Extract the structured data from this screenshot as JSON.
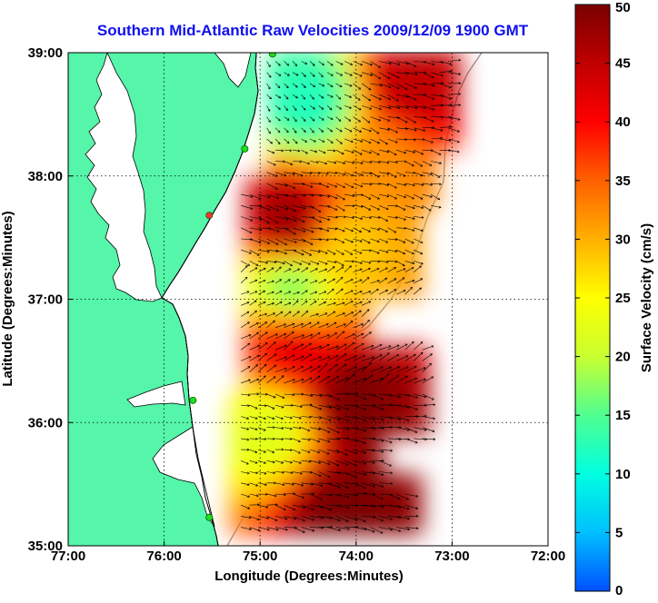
{
  "title": "Southern Mid-Atlantic Raw Velocities 2009/12/09 1900 GMT",
  "x_axis": {
    "label": "Longitude (Degrees:Minutes)",
    "ticks": [
      "77:00",
      "76:00",
      "75:00",
      "74:00",
      "73:00",
      "72:00"
    ]
  },
  "y_axis": {
    "label": "Latitude (Degrees:Minutes)",
    "ticks": [
      "39:00",
      "38:00",
      "37:00",
      "36:00",
      "35:00"
    ]
  },
  "colorbar": {
    "label": "Surface Velocity (cm/s)",
    "ticks": [
      "0",
      "5",
      "10",
      "15",
      "20",
      "25",
      "30",
      "35",
      "40",
      "45",
      "50"
    ],
    "min": 0,
    "max": 50,
    "colors": [
      "#0050ff",
      "#00c0ff",
      "#00ffe0",
      "#50ff90",
      "#c8ff30",
      "#ffff00",
      "#ffb000",
      "#ff6000",
      "#ff0000",
      "#c00000",
      "#7a0000"
    ]
  },
  "map": {
    "lon_range": [
      -77,
      -72
    ],
    "lat_range": [
      35,
      39
    ],
    "land_color": "#55f5aa",
    "water_color": "#ffffff",
    "grid": "dotted",
    "stations": [
      {
        "lon": -74.87,
        "lat": 38.99,
        "color": "#22dd22"
      },
      {
        "lon": -75.16,
        "lat": 38.22,
        "color": "#22dd22"
      },
      {
        "lon": -75.53,
        "lat": 37.68,
        "color": "#ff3030"
      },
      {
        "lon": -75.7,
        "lat": 36.18,
        "color": "#22dd22"
      },
      {
        "lon": -75.53,
        "lat": 35.23,
        "color": "#22dd22"
      }
    ]
  },
  "chart_data": {
    "type": "heatmap",
    "title": "Southern Mid-Atlantic Raw Velocities 2009/12/09 1900 GMT",
    "xlabel": "Longitude (Degrees:Minutes)",
    "ylabel": "Latitude (Degrees:Minutes)",
    "xlim": [
      -77,
      -72
    ],
    "ylim": [
      35,
      39
    ],
    "colorbar_label": "Surface Velocity (cm/s)",
    "colorbar_range": [
      0,
      50
    ],
    "regions": [
      {
        "lon": -74.5,
        "lat": 38.55,
        "speed": 12
      },
      {
        "lon": -73.5,
        "lat": 38.7,
        "speed": 45
      },
      {
        "lon": -73.8,
        "lat": 38.1,
        "speed": 32
      },
      {
        "lon": -74.7,
        "lat": 37.6,
        "speed": 48
      },
      {
        "lon": -74.2,
        "lat": 37.4,
        "speed": 28
      },
      {
        "lon": -74.7,
        "lat": 37.05,
        "speed": 17
      },
      {
        "lon": -74.7,
        "lat": 36.6,
        "speed": 42
      },
      {
        "lon": -74.1,
        "lat": 36.15,
        "speed": 50
      },
      {
        "lon": -74.9,
        "lat": 35.9,
        "speed": 22
      },
      {
        "lon": -74.2,
        "lat": 35.3,
        "speed": 50
      }
    ]
  }
}
